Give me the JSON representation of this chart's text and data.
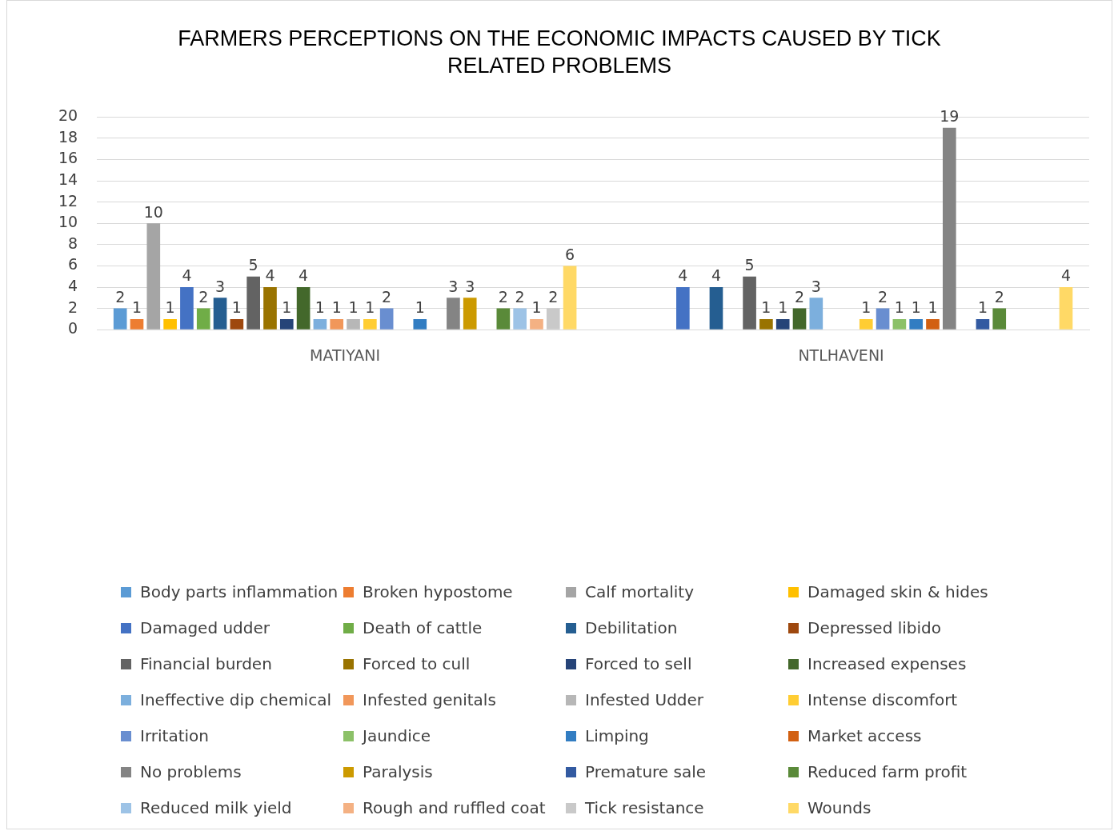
{
  "chart_data": {
    "type": "bar",
    "title": "FARMERS PERCEPTIONS  ON THE ECONOMIC IMPACTS CAUSED BY TICK RELATED PROBLEMS",
    "categories": [
      "MATIYANI",
      "NTLHAVENI"
    ],
    "ylim": [
      0,
      20
    ],
    "yticks": [
      0,
      2,
      4,
      6,
      8,
      10,
      12,
      14,
      16,
      18,
      20
    ],
    "grid": "y",
    "legend": "bottom",
    "data_labels": true,
    "series": [
      {
        "name": "Body parts inflammation",
        "color": "#5b9bd5",
        "values": [
          2,
          null
        ]
      },
      {
        "name": "Broken hypostome",
        "color": "#ed7d31",
        "values": [
          1,
          null
        ]
      },
      {
        "name": "Calf mortality",
        "color": "#a5a5a5",
        "values": [
          10,
          null
        ]
      },
      {
        "name": "Damaged skin & hides",
        "color": "#ffc000",
        "values": [
          1,
          null
        ]
      },
      {
        "name": "Damaged udder",
        "color": "#4472c4",
        "values": [
          4,
          4
        ]
      },
      {
        "name": "Death of cattle",
        "color": "#70ad47",
        "values": [
          2,
          null
        ]
      },
      {
        "name": "Debilitation",
        "color": "#255e91",
        "values": [
          3,
          4
        ]
      },
      {
        "name": "Depressed libido",
        "color": "#9e480e",
        "values": [
          1,
          null
        ]
      },
      {
        "name": "Financial burden",
        "color": "#636363",
        "values": [
          5,
          5
        ]
      },
      {
        "name": "Forced to cull",
        "color": "#997300",
        "values": [
          4,
          1
        ]
      },
      {
        "name": "Forced to sell",
        "color": "#264478",
        "values": [
          1,
          1
        ]
      },
      {
        "name": "Increased expenses",
        "color": "#43682b",
        "values": [
          4,
          2
        ]
      },
      {
        "name": "Ineffective dip chemical",
        "color": "#7cafdd",
        "values": [
          1,
          3
        ]
      },
      {
        "name": "Infested genitals",
        "color": "#f1975a",
        "values": [
          1,
          null
        ]
      },
      {
        "name": "Infested Udder",
        "color": "#b7b7b7",
        "values": [
          1,
          null
        ]
      },
      {
        "name": "Intense discomfort",
        "color": "#ffcd33",
        "values": [
          1,
          1
        ]
      },
      {
        "name": "Irritation",
        "color": "#698ed0",
        "values": [
          2,
          2
        ]
      },
      {
        "name": "Jaundice",
        "color": "#8cc168",
        "values": [
          null,
          1
        ]
      },
      {
        "name": "Limping",
        "color": "#327dc2",
        "values": [
          1,
          1
        ]
      },
      {
        "name": "Market access",
        "color": "#d26012",
        "values": [
          null,
          1
        ]
      },
      {
        "name": "No problems",
        "color": "#848484",
        "values": [
          3,
          19
        ]
      },
      {
        "name": "Paralysis",
        "color": "#cc9a00",
        "values": [
          3,
          null
        ]
      },
      {
        "name": "Premature sale",
        "color": "#335aa1",
        "values": [
          null,
          1
        ]
      },
      {
        "name": "Reduced farm profit",
        "color": "#5a8a39",
        "values": [
          2,
          2
        ]
      },
      {
        "name": "Reduced milk yield",
        "color": "#9dc3e6",
        "values": [
          2,
          null
        ]
      },
      {
        "name": "Rough and ruffled coat",
        "color": "#f4b183",
        "values": [
          1,
          null
        ]
      },
      {
        "name": "Tick resistance",
        "color": "#c9c9c9",
        "values": [
          2,
          null
        ]
      },
      {
        "name": "Wounds",
        "color": "#ffd966",
        "values": [
          6,
          4
        ]
      }
    ]
  }
}
